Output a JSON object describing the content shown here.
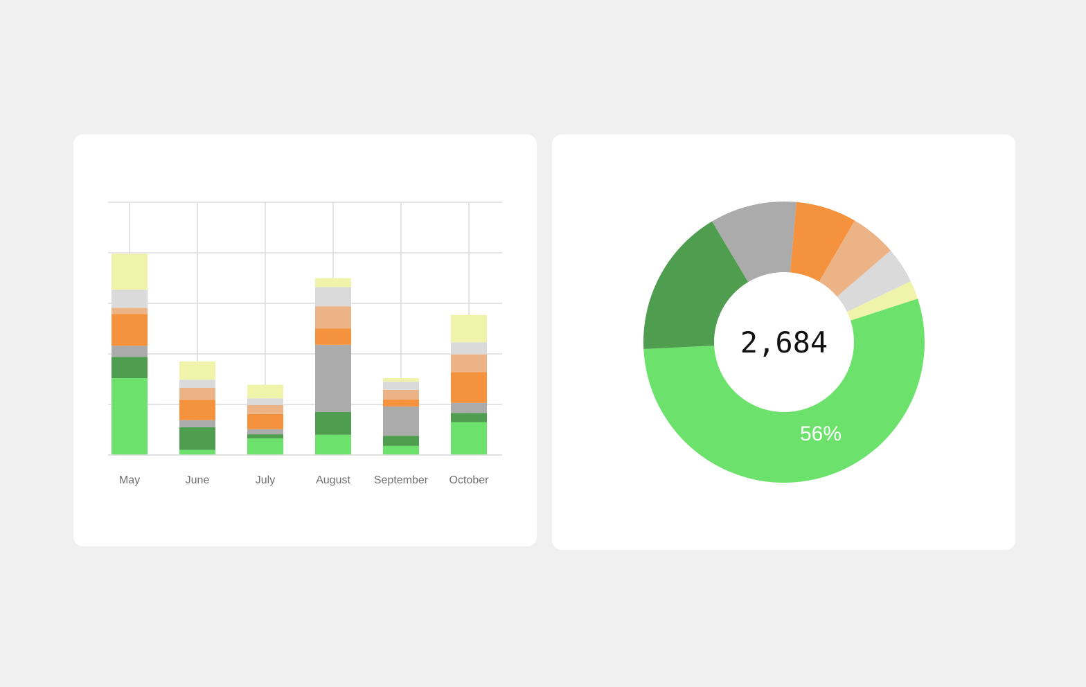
{
  "chart_data": [
    {
      "type": "bar",
      "stacked": true,
      "categories": [
        "May",
        "June",
        "July",
        "August",
        "September",
        "October"
      ],
      "ylim": [
        0,
        5
      ],
      "grid": true,
      "series": [
        {
          "color": "#6ce26c",
          "values": [
            1.52,
            0.1,
            0.33,
            0.4,
            0.18,
            0.65
          ]
        },
        {
          "color": "#4f9e4f",
          "values": [
            0.42,
            0.45,
            0.08,
            0.45,
            0.2,
            0.18
          ]
        },
        {
          "color": "#ababab",
          "values": [
            0.22,
            0.14,
            0.1,
            1.33,
            0.58,
            0.2
          ]
        },
        {
          "color": "#f4923e",
          "values": [
            0.63,
            0.4,
            0.3,
            0.32,
            0.14,
            0.61
          ]
        },
        {
          "color": "#ecb386",
          "values": [
            0.12,
            0.24,
            0.18,
            0.44,
            0.19,
            0.35
          ]
        },
        {
          "color": "#dadada",
          "values": [
            0.36,
            0.16,
            0.13,
            0.38,
            0.16,
            0.24
          ]
        },
        {
          "color": "#eff4aa",
          "values": [
            0.71,
            0.36,
            0.27,
            0.18,
            0.07,
            0.54
          ]
        }
      ]
    },
    {
      "type": "pie",
      "donut": true,
      "center_label": "2,684",
      "highlight_label": "56%",
      "slices": [
        {
          "color": "#6ce26c",
          "value": 56
        },
        {
          "color": "#4f9e4f",
          "value": 17.8
        },
        {
          "color": "#ababab",
          "value": 10.3
        },
        {
          "color": "#f4923e",
          "value": 7.2
        },
        {
          "color": "#ecb386",
          "value": 5.5
        },
        {
          "color": "#dadada",
          "value": 4.3
        },
        {
          "color": "#eff4aa",
          "value": 2.2
        }
      ]
    }
  ]
}
